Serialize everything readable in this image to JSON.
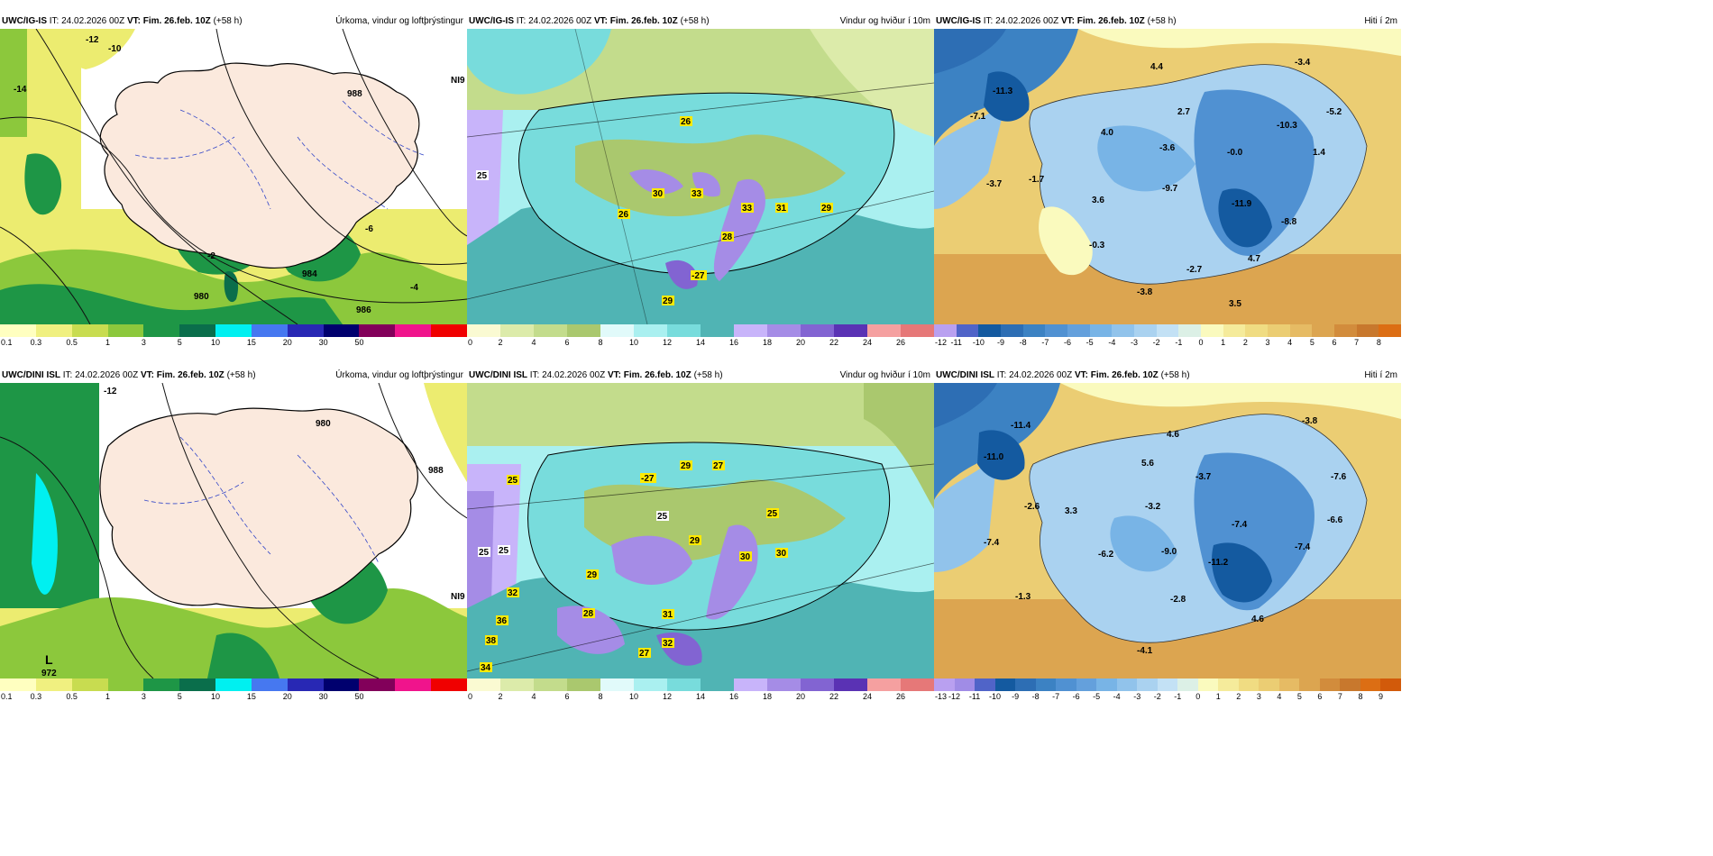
{
  "panels": [
    {
      "id": "p1",
      "model": "UWC/IG-IS",
      "init": "24.02.2026 00Z",
      "valid": "Fim. 26.feb. 10Z",
      "lead": "(+58 h)",
      "title": "Úrkoma, vindur og loftþrýstingur",
      "type": "precip"
    },
    {
      "id": "p2",
      "model": "UWC/IG-IS",
      "init": "24.02.2026 00Z",
      "valid": "Fim. 26.feb. 10Z",
      "lead": "(+58 h)",
      "title": "Vindur og hviður í 10m",
      "type": "wind"
    },
    {
      "id": "p3",
      "model": "UWC/IG-IS",
      "init": "24.02.2026 00Z",
      "valid": "Fim. 26.feb. 10Z",
      "lead": "(+58 h)",
      "title": "Hiti í 2m",
      "type": "temp"
    },
    {
      "id": "p4",
      "model": "UWC/DINI ISL",
      "init": "24.02.2026 00Z",
      "valid": "Fim. 26.feb. 10Z",
      "lead": "(+58 h)",
      "title": "Úrkoma, vindur og loftþrýstingur",
      "type": "precip"
    },
    {
      "id": "p5",
      "model": "UWC/DINI ISL",
      "init": "24.02.2026 00Z",
      "valid": "Fim. 26.feb. 10Z",
      "lead": "(+58 h)",
      "title": "Vindur og hviður í 10m",
      "type": "wind"
    },
    {
      "id": "p6",
      "model": "UWC/DINI ISL",
      "init": "24.02.2026 00Z",
      "valid": "Fim. 26.feb. 10Z",
      "lead": "(+58 h)",
      "title": "Hiti í 2m",
      "type": "temp"
    }
  ],
  "labels": {
    "it": "IT:",
    "vt": "VT:"
  },
  "precip_scale": {
    "ticks": [
      "0.1",
      "0.3",
      "0.5",
      "1",
      "3",
      "5",
      "10",
      "15",
      "20",
      "30",
      "50"
    ],
    "colors": [
      "#ffffc0",
      "#f0f080",
      "#c8dc50",
      "#8cc83c",
      "#1e9646",
      "#0a6e4b",
      "#00f0f0",
      "#4678f0",
      "#2828b4",
      "#00006e",
      "#82005a",
      "#f0148c",
      "#f00000"
    ]
  },
  "wind_scale": {
    "ticks": [
      "0",
      "2",
      "4",
      "6",
      "8",
      "10",
      "12",
      "14",
      "16",
      "18",
      "20",
      "22",
      "24",
      "26"
    ],
    "colors": [
      "#fafad2",
      "#dcebaa",
      "#c3dc8c",
      "#aac86e",
      "#e1fafa",
      "#aaf0f0",
      "#78dcdc",
      "#50b4b4",
      "#c8b4fa",
      "#a58ce6",
      "#8264d2",
      "#5a32b4",
      "#f5a0a0",
      "#e67878"
    ]
  },
  "temp_scale_top": {
    "ticks": [
      "-12",
      "-11",
      "-10",
      "-9",
      "-8",
      "-7",
      "-6",
      "-5",
      "-4",
      "-3",
      "-2",
      "-1",
      "0",
      "1",
      "2",
      "3",
      "4",
      "5",
      "6",
      "7",
      "8"
    ],
    "colors": [
      "#b9a0f0",
      "#5064c8",
      "#145aa0",
      "#2d6eb4",
      "#3c82c3",
      "#5091d2",
      "#64a0dc",
      "#78b4e6",
      "#91c3eb",
      "#aad2f0",
      "#c3e1f5",
      "#dcf0e6",
      "#fafabe",
      "#f5eb9b",
      "#f0dc82",
      "#ebcd73",
      "#e6bb64",
      "#dca550",
      "#d28c3c",
      "#c8782d",
      "#dc6e14"
    ]
  },
  "temp_scale_bot": {
    "ticks": [
      "-13",
      "-12",
      "-11",
      "-10",
      "-9",
      "-8",
      "-7",
      "-6",
      "-5",
      "-4",
      "-3",
      "-2",
      "-1",
      "0",
      "1",
      "2",
      "3",
      "4",
      "5",
      "6",
      "7",
      "8",
      "9"
    ],
    "colors": [
      "#b9a0f0",
      "#a08ce6",
      "#5064c8",
      "#145aa0",
      "#2d6eb4",
      "#3c82c3",
      "#5091d2",
      "#64a0dc",
      "#78b4e6",
      "#91c3eb",
      "#aad2f0",
      "#c3e1f5",
      "#dcf0e6",
      "#fafabe",
      "#f5eb9b",
      "#f0dc82",
      "#ebcd73",
      "#e6bb64",
      "#dca550",
      "#d28c3c",
      "#c8782d",
      "#dc6e14",
      "#d25a0a"
    ]
  },
  "map_labels": {
    "p1": [
      "-12",
      "-10",
      "-14",
      "-2",
      "-4",
      "-6",
      "988",
      "984",
      "980",
      "986",
      "NI9"
    ],
    "p2": [
      "26",
      "30",
      "33",
      "33",
      "31",
      "29",
      "26",
      "28",
      "-27",
      "29",
      "25"
    ],
    "p3": [
      "-11.3",
      "-7.1",
      "4.4",
      "2.7",
      "-3.4",
      "-5.2",
      "4.0",
      "-3.6",
      "-10.3",
      "-0.0",
      "1.4",
      "-3.7",
      "-1.7",
      "-9.7",
      "3.6",
      "-11.9",
      "-8.8",
      "-0.3",
      "4.7",
      "-2.7",
      "-3.8",
      "3.5"
    ],
    "p4": [
      "-12",
      "988",
      "980",
      "L",
      "972",
      "NI9"
    ],
    "p5": [
      "25",
      "-27",
      "29",
      "27",
      "25",
      "29",
      "25",
      "30",
      "30",
      "29",
      "32",
      "36",
      "38",
      "34",
      "28",
      "31",
      "32",
      "27",
      "25",
      "25"
    ],
    "p6": [
      "-11.4",
      "-11.0",
      "4.6",
      "-3.8",
      "5.6",
      "-3.7",
      "-7.6",
      "-2.6",
      "3.3",
      "-3.2",
      "-7.4",
      "-6.6",
      "-7.4",
      "-6.2",
      "-9.0",
      "-11.2",
      "-7.4",
      "-1.3",
      "-2.8",
      "4.6",
      "-4.1"
    ]
  }
}
